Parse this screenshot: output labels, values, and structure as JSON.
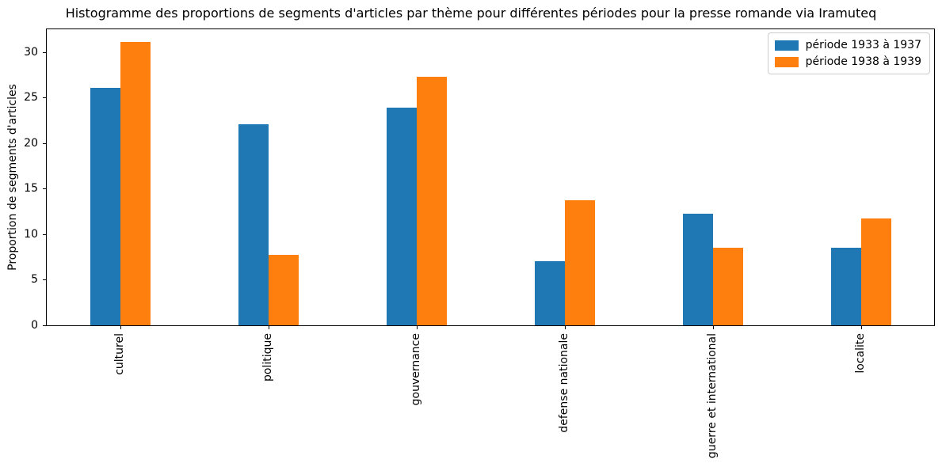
{
  "chart_data": {
    "type": "bar",
    "title": "Histogramme des proportions de segments d'articles par thème pour différentes périodes pour la presse romande via Iramuteq",
    "xlabel": "",
    "ylabel": "Proportion de segments d'articles",
    "categories": [
      "culturel",
      "politique",
      "gouvernance",
      "defense nationale",
      "guerre et international",
      "localite"
    ],
    "series": [
      {
        "name": "période 1933 à 1937",
        "color": "#1f77b4",
        "values": [
          26.1,
          22.1,
          23.9,
          7.0,
          12.3,
          8.5
        ]
      },
      {
        "name": "période 1938 à 1939",
        "color": "#ff7f0e",
        "values": [
          31.1,
          7.7,
          27.3,
          13.7,
          8.5,
          11.7
        ]
      }
    ],
    "ylim": [
      0,
      32.6
    ],
    "yticks": [
      0,
      5,
      10,
      15,
      20,
      25,
      30
    ],
    "grid": false,
    "legend_position": "upper right",
    "x_tick_rotation": 90,
    "bar_color_blue": "#1f77b4",
    "bar_color_orange": "#ff7f0e"
  }
}
